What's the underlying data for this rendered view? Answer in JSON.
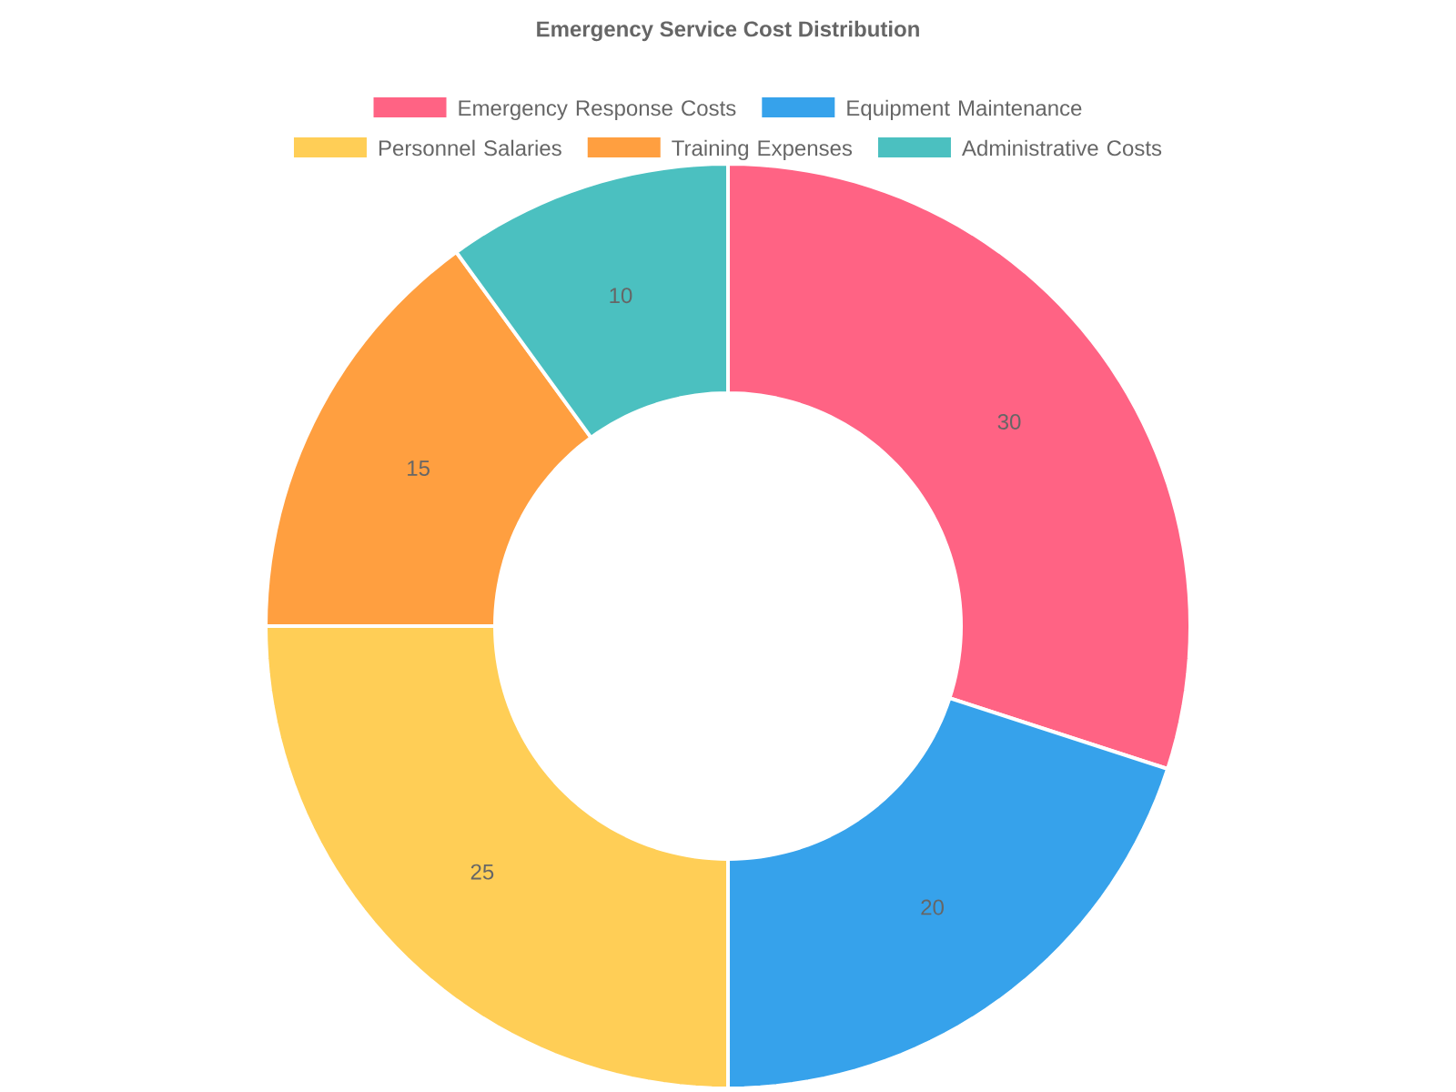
{
  "chart_data": {
    "type": "donut",
    "title": "Emergency Service Cost Distribution",
    "categories": [
      "Emergency Response Costs",
      "Equipment Maintenance",
      "Personnel Salaries",
      "Training Expenses",
      "Administrative Costs"
    ],
    "values": [
      30,
      20,
      25,
      15,
      10
    ],
    "colors": [
      "#ff6384",
      "#36a2eb",
      "#ffce56",
      "#ff9f40",
      "#4bc0c0"
    ],
    "data_labels": true,
    "legend": "top"
  }
}
